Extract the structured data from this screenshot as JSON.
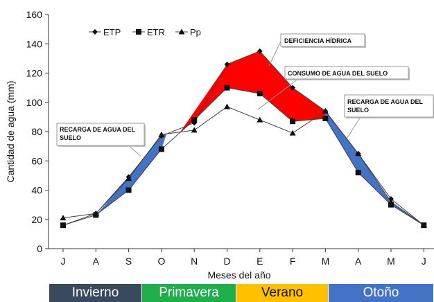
{
  "chart_data": {
    "type": "line",
    "title": "",
    "xlabel": "Meses del año",
    "ylabel": "Cantidad de agua (mm)",
    "ylim": [
      0,
      160
    ],
    "yticks": [
      0,
      20,
      40,
      60,
      80,
      100,
      120,
      140,
      160
    ],
    "grid": false,
    "legend_position": "top-left",
    "categories": [
      "J",
      "A",
      "S",
      "O",
      "N",
      "D",
      "E",
      "F",
      "M",
      "A",
      "M",
      "J"
    ],
    "series": [
      {
        "name": "ETP",
        "marker": "diamond",
        "values": [
          16,
          24,
          49,
          77,
          86,
          126,
          135,
          110,
          94,
          65,
          34,
          16
        ]
      },
      {
        "name": "ETR",
        "marker": "square",
        "values": [
          16,
          23,
          40,
          68,
          88,
          110,
          106,
          87,
          89,
          52,
          30,
          16
        ]
      },
      {
        "name": "Pp",
        "marker": "triangle",
        "values": [
          21,
          24,
          48,
          78,
          81,
          97,
          88,
          79,
          94,
          65,
          32,
          16
        ]
      }
    ],
    "annotations": [
      "DEFICIENCIA HÍDRICA",
      "CONSUMO DE AGUA DEL SUELO",
      "RECARGA DE AGUA DEL SUELO",
      "RECARGA DE AGUA DEL SUELO"
    ],
    "annotation_lines": [
      [
        "DEFICIENCIA HÍDRICA"
      ],
      [
        "CONSUMO DE AGUA DEL SUELO"
      ],
      [
        "RECARGA DE AGUA DEL",
        "SUELO"
      ],
      [
        "RECARGA DE AGUA DEL",
        "SUELO"
      ]
    ],
    "seasons": [
      "Invierno",
      "Primavera",
      "Verano",
      "Otoño"
    ],
    "colors": {
      "deficiency": "#ff0000",
      "recharge": "#4472c4",
      "line": "#404040",
      "invierno": "#3a4a5e",
      "primavera": "#1fae4b",
      "verano": "#ffc000",
      "otono": "#4472c4"
    }
  }
}
